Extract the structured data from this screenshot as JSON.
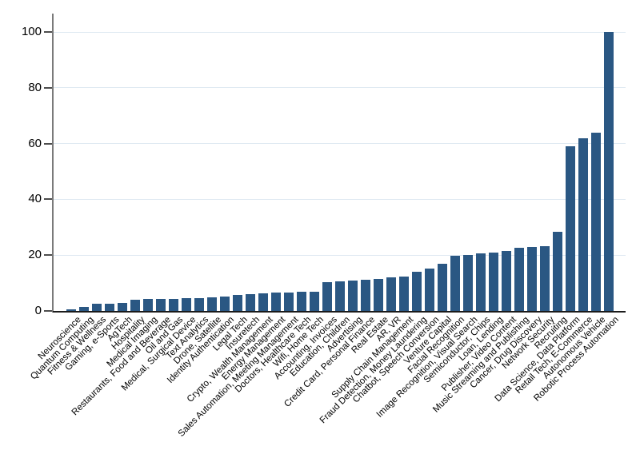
{
  "chart_data": {
    "type": "bar",
    "title": "",
    "xlabel": "",
    "ylabel": "",
    "ylim": [
      0,
      100
    ],
    "yticks": [
      0,
      20,
      40,
      60,
      80,
      100
    ],
    "grid": true,
    "legend": "none",
    "bar_color": "#2a5783",
    "grid_color": "#dfe9f2",
    "y_axis_color": "#7a7a7a",
    "x_axis_color": "#1b1b1b",
    "tick_color": "#4d4d4d",
    "categories": [
      "Neuroscience",
      "Quantum Computing",
      "Fitness & Wellness",
      "Gaming, e-Sports",
      "AgTech",
      "Hospitality",
      "Medical Imaging",
      "Restaurants, Food and Beverage",
      "Oil and Gas",
      "Medical, Surgical Device",
      "Text Analytics",
      "Drone, Satellite",
      "Identity Authentication",
      "Legal Tech",
      "Insuretech",
      "Crypto, Wealth Management",
      "Energy Management",
      "Sales Automation, Meeting Management",
      "Doctors, Healthcare Tech",
      "Wifi, Home Tech",
      "Accounting, Invoices",
      "Education, Children",
      "Advertising",
      "Credit Card, Personal Finance",
      "Real Estate",
      "AR, VR",
      "Supply Chain Management",
      "Fraud Detection, Money Laundering",
      "Chatbot, Speech Conversion",
      "Venture Capital",
      "Facial Recognition",
      "Image Recognition, Visual Search",
      "Semiconductor, Chips",
      "Loan, Lending",
      "Publisher, Video Content",
      "Music Streaming and Publishing",
      "Cancer, Drug Discovery",
      "Network Security",
      "Recruiting",
      "Data Science, Data Platform",
      "Retail Tech, E-Commerce",
      "Autonomous Vehicle",
      "Robotic Process Automation"
    ],
    "values": [
      0.7,
      1.5,
      2.5,
      2.7,
      3,
      4,
      4.2,
      4.3,
      4.4,
      4.5,
      4.7,
      5,
      5.3,
      5.6,
      6,
      6.3,
      6.5,
      6.7,
      7,
      7,
      10.3,
      10.5,
      11,
      11.3,
      11.5,
      12,
      12.3,
      14,
      15.3,
      17,
      19.7,
      20,
      20.5,
      20.8,
      21.5,
      22.5,
      23,
      23.3,
      28.3,
      59,
      62,
      64,
      100
    ]
  }
}
